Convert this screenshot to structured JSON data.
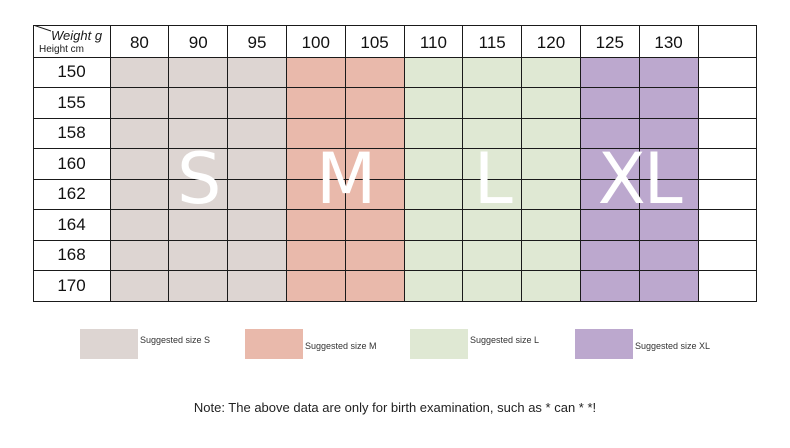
{
  "table": {
    "corner_weight_label": "Weight g",
    "corner_height_label": "Height cm",
    "weights": [
      "80",
      "90",
      "95",
      "100",
      "105",
      "110",
      "115",
      "120",
      "125",
      "130",
      ""
    ],
    "heights": [
      "150",
      "155",
      "158",
      "160",
      "162",
      "164",
      "168",
      "170"
    ],
    "size_bands": [
      {
        "label": "S",
        "start_col": 0,
        "end_col": 2,
        "color": "#ddd5d2"
      },
      {
        "label": "M",
        "start_col": 3,
        "end_col": 4,
        "color": "#e9b9ab"
      },
      {
        "label": "L",
        "start_col": 5,
        "end_col": 7,
        "color": "#dfe8d3"
      },
      {
        "label": "XL",
        "start_col": 8,
        "end_col": 9,
        "color": "#bca8ce"
      }
    ]
  },
  "legend": [
    {
      "label": "Suggested size S",
      "color": "#ddd5d2"
    },
    {
      "label": "Suggested size M",
      "color": "#e9b9ab"
    },
    {
      "label": "Suggested size L",
      "color": "#dfe8d3"
    },
    {
      "label": "Suggested size XL",
      "color": "#bca8ce"
    }
  ],
  "note": "Note: The above data are only for birth examination, such as * can * *!"
}
